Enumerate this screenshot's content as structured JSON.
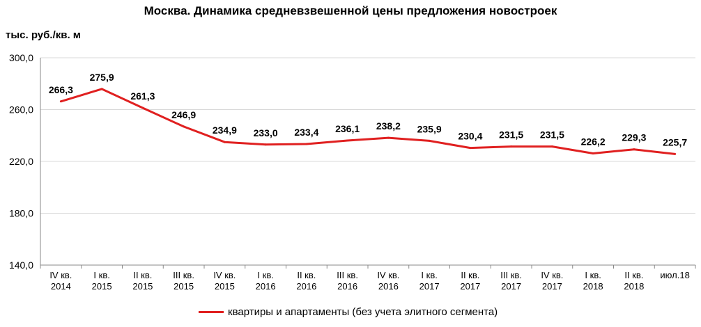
{
  "chart_data": {
    "type": "line",
    "title": "Москва. Динамика средневзвешенной цены предложения новостроек",
    "ylabel": "тыс. руб./кв. м",
    "xlabel": "",
    "ylim": [
      140,
      300
    ],
    "yticks": [
      "140,0",
      "180,0",
      "220,0",
      "260,0",
      "300,0"
    ],
    "ytick_values": [
      140,
      180,
      220,
      260,
      300
    ],
    "grid": true,
    "legend_position": "bottom",
    "categories": [
      [
        "IV кв.",
        "2014"
      ],
      [
        "I кв.",
        "2015"
      ],
      [
        "II кв.",
        "2015"
      ],
      [
        "III кв.",
        "2015"
      ],
      [
        "IV кв.",
        "2015"
      ],
      [
        "I кв.",
        "2016"
      ],
      [
        "II кв.",
        "2016"
      ],
      [
        "III кв.",
        "2016"
      ],
      [
        "IV кв.",
        "2016"
      ],
      [
        "I кв.",
        "2017"
      ],
      [
        "II кв.",
        "2017"
      ],
      [
        "III кв.",
        "2017"
      ],
      [
        "IV кв.",
        "2017"
      ],
      [
        "I кв.",
        "2018"
      ],
      [
        "II кв.",
        "2018"
      ],
      [
        "июл.18"
      ]
    ],
    "series": [
      {
        "name": "квартиры и апартаменты (без учета элитного сегмента)",
        "color": "#e02020",
        "values": [
          266.3,
          275.9,
          261.3,
          246.9,
          234.9,
          233.0,
          233.4,
          236.1,
          238.2,
          235.9,
          230.4,
          231.5,
          231.5,
          226.2,
          229.3,
          225.7
        ],
        "labels": [
          "266,3",
          "275,9",
          "261,3",
          "246,9",
          "234,9",
          "233,0",
          "233,4",
          "236,1",
          "238,2",
          "235,9",
          "230,4",
          "231,5",
          "231,5",
          "226,2",
          "229,3",
          "225,7"
        ]
      }
    ]
  }
}
